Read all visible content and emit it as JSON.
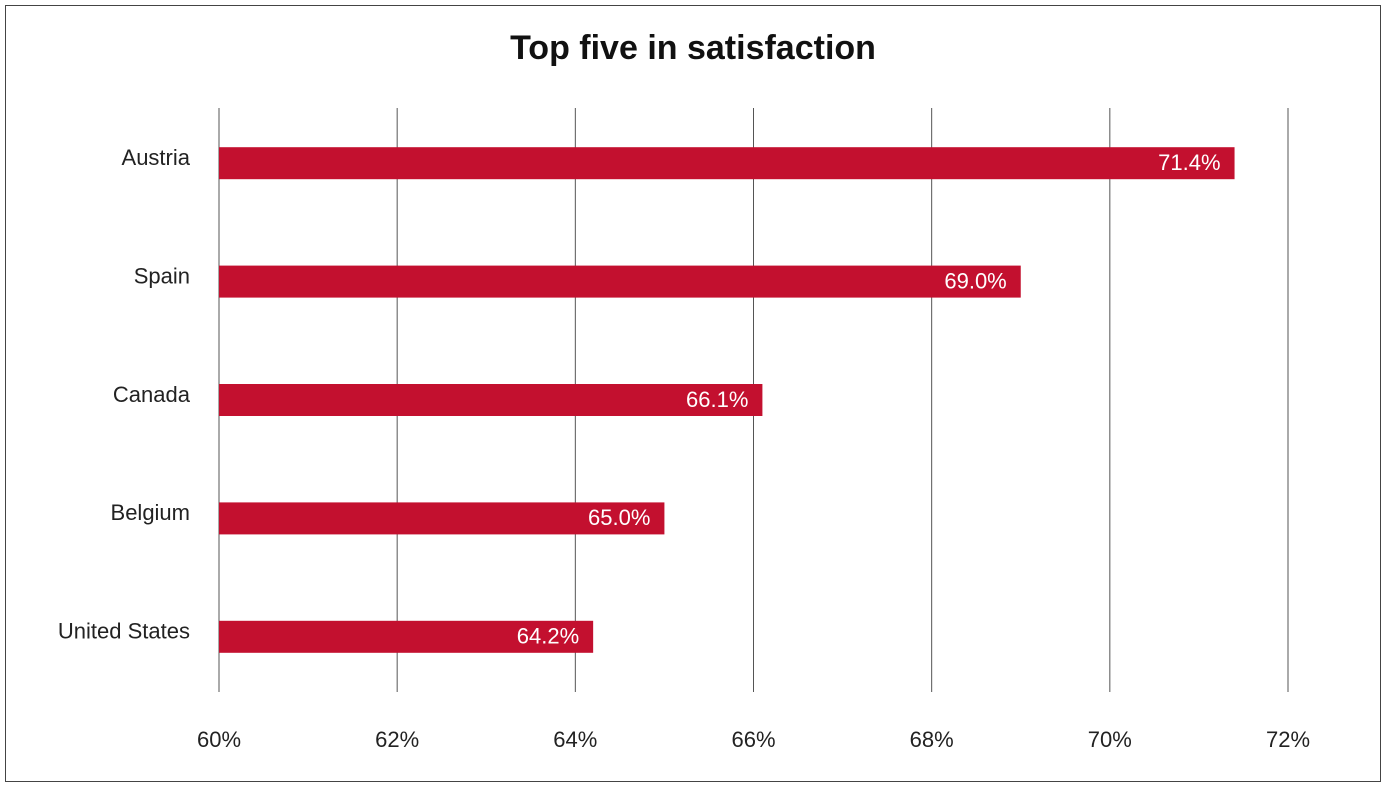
{
  "chart_data": {
    "type": "bar",
    "orientation": "horizontal",
    "title": "Top five in satisfaction",
    "categories": [
      "Austria",
      "Spain",
      "Canada",
      "Belgium",
      "United States"
    ],
    "values": [
      71.4,
      69.0,
      66.1,
      65.0,
      64.2
    ],
    "value_labels": [
      "71.4%",
      "69.0%",
      "66.1%",
      "65.0%",
      "64.2%"
    ],
    "color": "#c3102f",
    "xlim": [
      60,
      72
    ],
    "xticks": [
      {
        "value": 60,
        "label": "60%"
      },
      {
        "value": 62,
        "label": "62%"
      },
      {
        "value": 64,
        "label": "64%"
      },
      {
        "value": 66,
        "label": "66%"
      },
      {
        "value": 68,
        "label": "68%"
      },
      {
        "value": 70,
        "label": "70%"
      },
      {
        "value": 72,
        "label": "72%"
      }
    ],
    "grid": true
  }
}
